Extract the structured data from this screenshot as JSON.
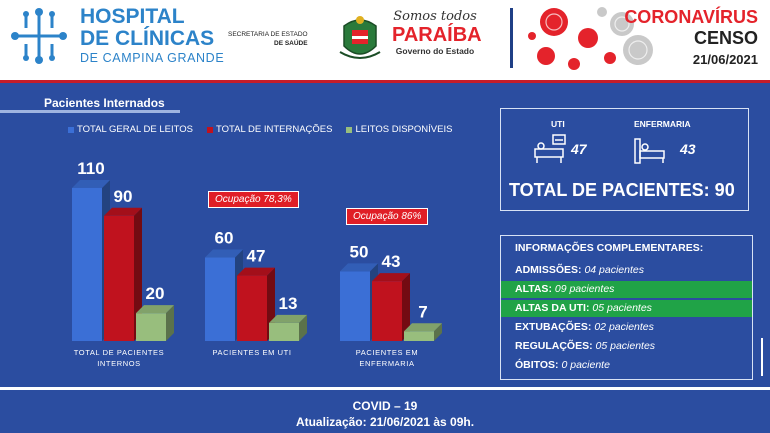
{
  "header": {
    "hospital_line1": "HOSPITAL",
    "hospital_line2": "DE CLÍNICAS",
    "hospital_line3": "DE CAMPINA GRANDE",
    "secretaria_line1": "SECRETARIA DE ESTADO",
    "secretaria_line2": "DE SAÚDE",
    "pb_slogan": "Somos todos",
    "pb_name": "PARAÍBA",
    "pb_gov": "Governo do Estado",
    "corona_title": "CORONAVÍRUS",
    "censo": "CENSO",
    "date": "21/06/2021"
  },
  "chart_section_title": "Pacientes Internados",
  "legend": {
    "total_leitos": "TOTAL GERAL DE LEITOS",
    "total_internacoes": "TOTAL DE INTERNAÇÕES",
    "leitos_disponiveis": "LEITOS DISPONÍVEIS"
  },
  "occupancy": {
    "uti": "Ocupação 78,3%",
    "enfermaria": "Ocupação 86%"
  },
  "chart_data": {
    "type": "bar",
    "categories": [
      "TOTAL DE PACIENTES INTERNOS",
      "PACIENTES EM UTI",
      "PACIENTES EM ENFERMARIA"
    ],
    "series": [
      {
        "name": "TOTAL GERAL DE LEITOS",
        "values": [
          110,
          60,
          50
        ],
        "color": "#3b6fd6"
      },
      {
        "name": "TOTAL DE INTERNAÇÕES",
        "values": [
          90,
          47,
          43
        ],
        "color": "#c0121e"
      },
      {
        "name": "LEITOS DISPONÍVEIS",
        "values": [
          20,
          13,
          7
        ],
        "color": "#98be7d"
      }
    ],
    "ylim": [
      0,
      115
    ],
    "grid": false,
    "legend": "top"
  },
  "summary": {
    "uti_label": "UTI",
    "uti_value": "47",
    "enf_label": "ENFERMARIA",
    "enf_value": "43",
    "total_label": "TOTAL DE PACIENTES: 90"
  },
  "info": {
    "title": "INFORMAÇÕES COMPLEMENTARES:",
    "rows": [
      {
        "label": "ADMISSÕES:",
        "value": "04 pacientes",
        "highlight": false
      },
      {
        "label": "ALTAS:",
        "value": "09 pacientes",
        "highlight": true
      },
      {
        "label": "ALTAS DA UTI:",
        "value": "05 pacientes",
        "highlight": true
      },
      {
        "label": "EXTUBAÇÕES:",
        "value": "02 pacientes",
        "highlight": false
      },
      {
        "label": "REGULAÇÕES:",
        "value": "05 pacientes",
        "highlight": false
      },
      {
        "label": "ÓBITOS:",
        "value": "0 paciente",
        "highlight": false
      }
    ]
  },
  "footer": {
    "line1": "COVID – 19",
    "line2": "Atualização: 21/06/2021 às 09h."
  },
  "colors": {
    "background": "#2b4da0",
    "accent_red": "#e4232b",
    "hospital_blue": "#2c83c9",
    "highlight_green": "#20a347"
  }
}
